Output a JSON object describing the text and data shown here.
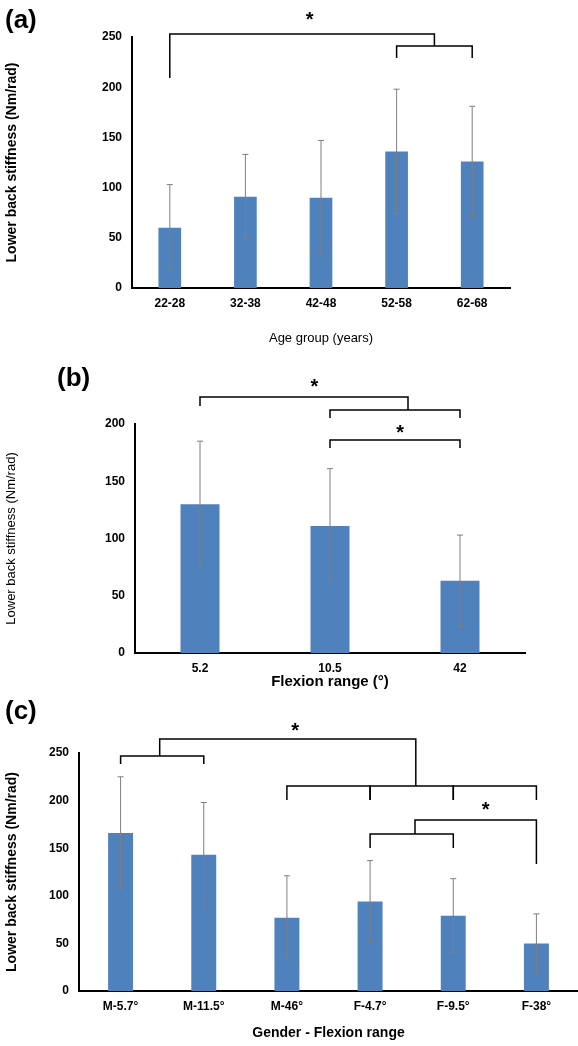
{
  "chart_data": [
    {
      "type": "bar",
      "title": "(a)",
      "xlabel": "Age group (years)",
      "ylabel": "Lower back stiffness (Nm/rad)",
      "categories": [
        "22-28",
        "32-38",
        "42-48",
        "52-58",
        "62-68"
      ],
      "values": [
        60,
        91,
        90,
        136,
        126
      ],
      "errors": [
        43,
        42,
        57,
        62,
        55
      ],
      "color": "#4f81bd",
      "ylim": [
        0,
        250
      ],
      "yticks": [
        0,
        50,
        100,
        150,
        200,
        250
      ],
      "grid": false,
      "legend": false,
      "annotations": [
        "*"
      ]
    },
    {
      "type": "bar",
      "title": "(b)",
      "xlabel": "Flexion range (°)",
      "ylabel": "Lower back stiffness (Nm/rad)",
      "categories": [
        "5.2",
        "10.5",
        "42"
      ],
      "values": [
        130,
        111,
        63
      ],
      "errors": [
        55,
        50,
        40
      ],
      "color": "#4f81bd",
      "ylim": [
        0,
        200
      ],
      "yticks": [
        0,
        50,
        100,
        150,
        200
      ],
      "grid": false,
      "legend": false,
      "annotations": [
        "*",
        "*"
      ]
    },
    {
      "type": "bar",
      "title": "(c)",
      "xlabel": "Gender - Flexion range",
      "ylabel": "Lower back stiffness (Nm/rad)",
      "categories": [
        "M-5.7°",
        "M-11.5°",
        "M-46°",
        "F-4.7°",
        "F-9.5°",
        "F-38°"
      ],
      "values": [
        166,
        143,
        77,
        94,
        79,
        50
      ],
      "errors": [
        59,
        55,
        44,
        43,
        39,
        31
      ],
      "color": "#4f81bd",
      "ylim": [
        0,
        250
      ],
      "yticks": [
        0,
        50,
        100,
        150,
        200,
        250
      ],
      "grid": false,
      "legend": false,
      "annotations": [
        "*",
        "*"
      ]
    }
  ]
}
